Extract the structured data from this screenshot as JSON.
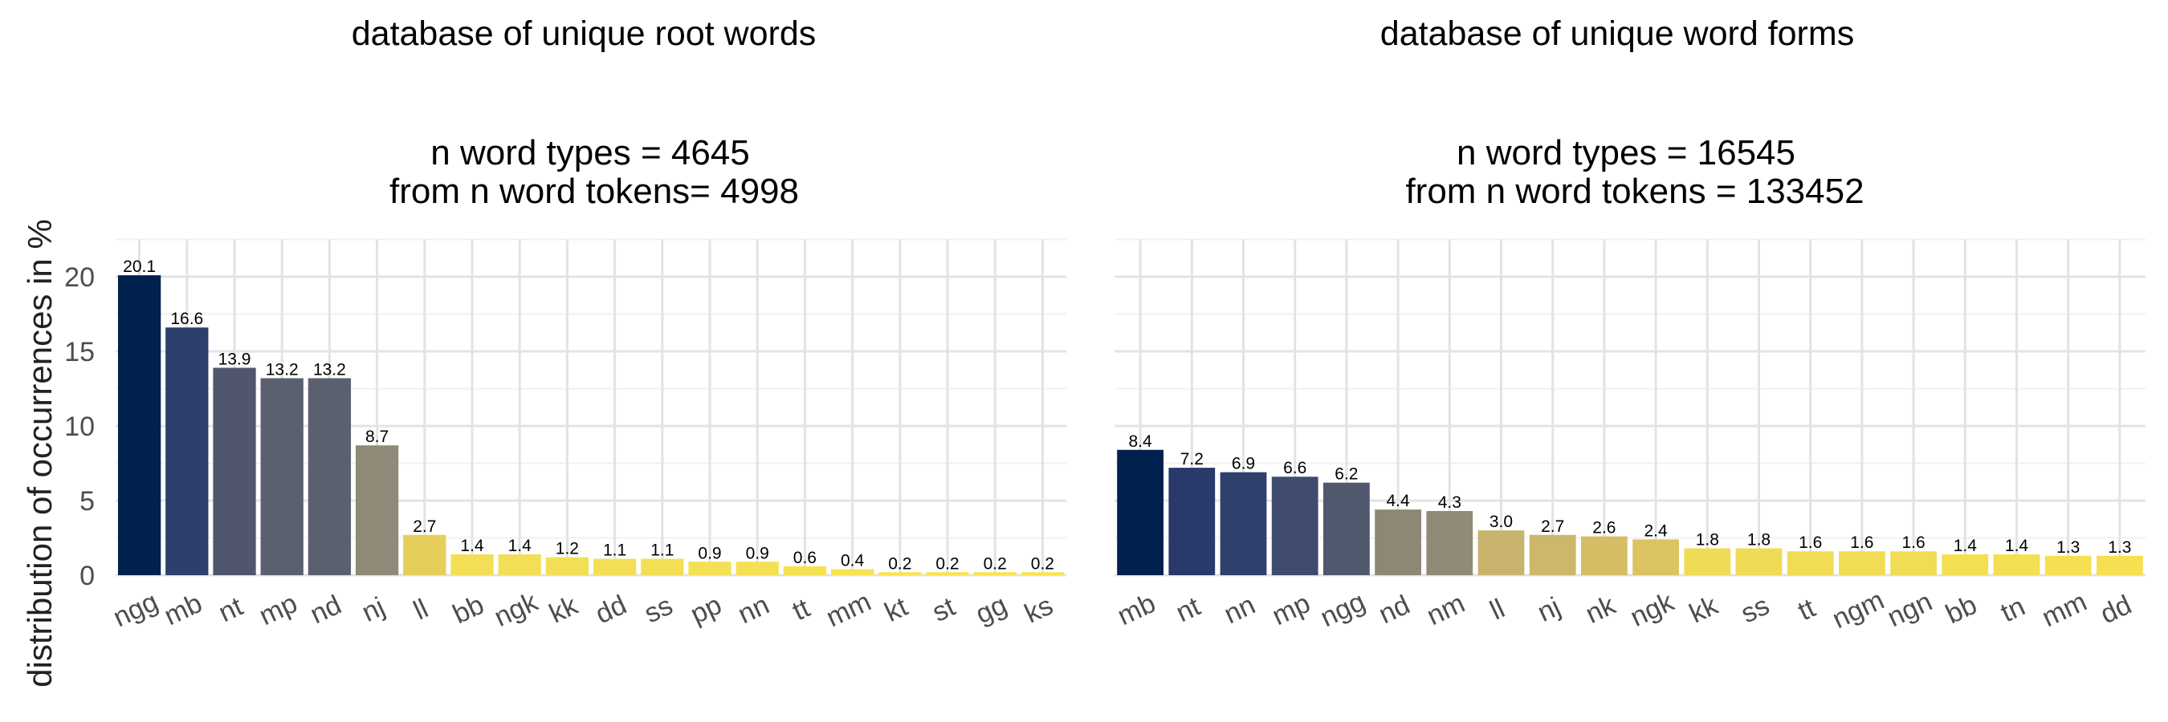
{
  "ylabel": "distribution of occurrences in %",
  "panels": [
    {
      "title": "database of unique root words",
      "subtitle1": "n word types = 4645",
      "subtitle2": "from n word tokens= 4998"
    },
    {
      "title": "database of unique word forms",
      "subtitle1": "n word types = 16545",
      "subtitle2": "from n word tokens = 133452"
    }
  ],
  "chart_data": [
    {
      "type": "bar",
      "title": "database of unique root words",
      "subtitle": "n word types = 4645 from n word tokens= 4998",
      "ylabel": "distribution of occurrences in %",
      "ylim": [
        0,
        22.5
      ],
      "yticks": [
        0,
        5,
        10,
        15,
        20
      ],
      "grid": true,
      "categories": [
        "ngg",
        "mb",
        "nt",
        "mp",
        "nd",
        "nj",
        "ll",
        "bb",
        "ngk",
        "kk",
        "dd",
        "ss",
        "pp",
        "nn",
        "tt",
        "mm",
        "kt",
        "st",
        "gg",
        "ks"
      ],
      "values": [
        20.1,
        16.6,
        13.9,
        13.2,
        13.2,
        8.7,
        2.7,
        1.4,
        1.4,
        1.2,
        1.1,
        1.1,
        0.9,
        0.9,
        0.6,
        0.4,
        0.2,
        0.2,
        0.2,
        0.2
      ],
      "labels": [
        "20.1",
        "16.6",
        "13.9",
        "13.2",
        "13.2",
        "8.7",
        "2.7",
        "1.4",
        "1.4",
        "1.2",
        "1.1",
        "1.1",
        "0.9",
        "0.9",
        "0.6",
        "0.4",
        "0.2",
        "0.2",
        "0.2",
        "0.2"
      ],
      "colors": [
        "#00204d",
        "#2d3f6b",
        "#4f566d",
        "#5b6070",
        "#5b6070",
        "#8e8a77",
        "#e5cf5a",
        "#f2df57",
        "#f2df57",
        "#f2df57",
        "#f3df55",
        "#f3df55",
        "#f4e054",
        "#f4e054",
        "#f6e153",
        "#f7e252",
        "#f9e350",
        "#f9e350",
        "#f9e350",
        "#f9e350"
      ]
    },
    {
      "type": "bar",
      "title": "database of unique word forms",
      "subtitle": "n word types = 16545 from n word tokens = 133452",
      "ylim": [
        0,
        22.5
      ],
      "yticks": [
        0,
        5,
        10,
        15,
        20
      ],
      "grid": true,
      "categories": [
        "mb",
        "nt",
        "nn",
        "mp",
        "ngg",
        "nd",
        "nm",
        "ll",
        "nj",
        "nk",
        "ngk",
        "kk",
        "ss",
        "tt",
        "ngm",
        "ngn",
        "bb",
        "tn",
        "mm",
        "dd"
      ],
      "values": [
        8.4,
        7.2,
        6.9,
        6.6,
        6.2,
        4.4,
        4.3,
        3.0,
        2.7,
        2.6,
        2.4,
        1.8,
        1.8,
        1.6,
        1.6,
        1.6,
        1.4,
        1.4,
        1.3,
        1.3
      ],
      "labels": [
        "8.4",
        "7.2",
        "6.9",
        "6.6",
        "6.2",
        "4.4",
        "4.3",
        "3.0",
        "2.7",
        "2.6",
        "2.4",
        "1.8",
        "1.8",
        "1.6",
        "1.6",
        "1.6",
        "1.4",
        "1.4",
        "1.3",
        "1.3"
      ],
      "colors": [
        "#00204d",
        "#29396a",
        "#30406c",
        "#3f4c6e",
        "#50586e",
        "#8c8875",
        "#8f8b76",
        "#c9b46d",
        "#cdb76b",
        "#d5bd66",
        "#dcc362",
        "#efdb55",
        "#efdb55",
        "#f1dc55",
        "#f1dc55",
        "#f1dc55",
        "#f4df53",
        "#f4df53",
        "#f6e052",
        "#f6e052"
      ]
    }
  ]
}
